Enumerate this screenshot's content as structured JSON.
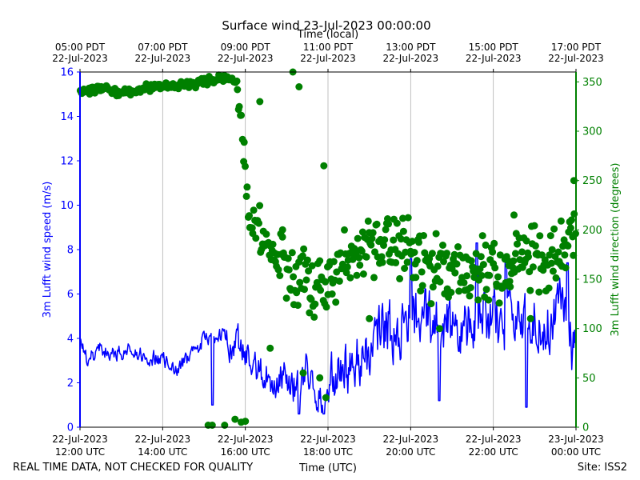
{
  "chart_data": {
    "type": "line",
    "title": "Surface wind 23-Jul-2023 00:00:00",
    "top_axis_label": "Time (local)",
    "top_ticks": [
      {
        "hour": 12,
        "line1": "05:00 PDT",
        "line2": "22-Jul-2023"
      },
      {
        "hour": 14,
        "line1": "07:00 PDT",
        "line2": "22-Jul-2023"
      },
      {
        "hour": 16,
        "line1": "09:00 PDT",
        "line2": "22-Jul-2023"
      },
      {
        "hour": 18,
        "line1": "11:00 PDT",
        "line2": "22-Jul-2023"
      },
      {
        "hour": 20,
        "line1": "13:00 PDT",
        "line2": "22-Jul-2023"
      },
      {
        "hour": 22,
        "line1": "15:00 PDT",
        "line2": "22-Jul-2023"
      },
      {
        "hour": 24,
        "line1": "17:00 PDT",
        "line2": "22-Jul-2023"
      }
    ],
    "xlabel": "Time (UTC)",
    "x_ticks": [
      {
        "hour": 12,
        "line1": "22-Jul-2023",
        "line2": "12:00 UTC"
      },
      {
        "hour": 14,
        "line1": "22-Jul-2023",
        "line2": "14:00 UTC"
      },
      {
        "hour": 16,
        "line1": "22-Jul-2023",
        "line2": "16:00 UTC"
      },
      {
        "hour": 18,
        "line1": "22-Jul-2023",
        "line2": "18:00 UTC"
      },
      {
        "hour": 20,
        "line1": "22-Jul-2023",
        "line2": "20:00 UTC"
      },
      {
        "hour": 22,
        "line1": "22-Jul-2023",
        "line2": "22:00 UTC"
      },
      {
        "hour": 24,
        "line1": "23-Jul-2023",
        "line2": "00:00 UTC"
      }
    ],
    "xlim": [
      12,
      24
    ],
    "grid": "vertical",
    "ylabel": "3m Lufft wind speed (m/s)",
    "ylim": [
      0,
      16
    ],
    "y_ticks": [
      0,
      2,
      4,
      6,
      8,
      10,
      12,
      14,
      16
    ],
    "y2label": "3m Lufft wind direction (degrees)",
    "y2lim": [
      0,
      360
    ],
    "y2_ticks": [
      0,
      50,
      100,
      150,
      200,
      250,
      300,
      350
    ],
    "colors": {
      "speed": "#0000ff",
      "direction": "#008000"
    },
    "speed_anchors": [
      [
        12.0,
        3.7
      ],
      [
        12.2,
        2.9
      ],
      [
        12.4,
        3.5
      ],
      [
        12.8,
        3.4
      ],
      [
        13.0,
        3.3
      ],
      [
        13.2,
        3.7
      ],
      [
        13.5,
        3.2
      ],
      [
        14.0,
        3.1
      ],
      [
        14.3,
        2.4
      ],
      [
        14.6,
        3.1
      ],
      [
        14.8,
        3.4
      ],
      [
        15.0,
        4.0
      ],
      [
        15.4,
        4.1
      ],
      [
        15.8,
        3.7
      ],
      [
        16.0,
        3.2
      ],
      [
        16.2,
        2.7
      ],
      [
        16.5,
        2.2
      ],
      [
        16.8,
        2.2
      ],
      [
        17.0,
        2.0
      ],
      [
        17.3,
        1.6
      ],
      [
        17.5,
        2.5
      ],
      [
        17.7,
        1.5
      ],
      [
        18.0,
        1.5
      ],
      [
        18.3,
        2.5
      ],
      [
        18.6,
        2.9
      ],
      [
        19.0,
        3.5
      ],
      [
        19.3,
        4.4
      ],
      [
        19.6,
        4.5
      ],
      [
        20.0,
        4.8
      ],
      [
        20.3,
        5.0
      ],
      [
        20.6,
        4.7
      ],
      [
        21.0,
        4.6
      ],
      [
        21.3,
        4.2
      ],
      [
        21.6,
        5.3
      ],
      [
        22.0,
        5.0
      ],
      [
        22.3,
        4.5
      ],
      [
        22.6,
        4.3
      ],
      [
        23.0,
        5.2
      ],
      [
        23.3,
        4.6
      ],
      [
        23.6,
        5.3
      ],
      [
        24.0,
        3.0
      ]
    ],
    "speed_noise": 0.9,
    "speed_drops": [
      {
        "hour": 15.2,
        "value": 1.0
      },
      {
        "hour": 17.3,
        "value": 0.6
      },
      {
        "hour": 17.9,
        "value": 0.6
      },
      {
        "hour": 20.7,
        "value": 1.2
      },
      {
        "hour": 22.8,
        "value": 0.9
      }
    ],
    "speed_peaks": [
      {
        "hour": 20.0,
        "value": 7.6
      },
      {
        "hour": 21.6,
        "value": 8.3
      },
      {
        "hour": 22.3,
        "value": 7.5
      },
      {
        "hour": 23.8,
        "value": 7.4
      }
    ],
    "direction_anchors": [
      [
        12.0,
        340
      ],
      [
        12.6,
        343
      ],
      [
        13.0,
        338
      ],
      [
        13.5,
        343
      ],
      [
        14.0,
        345
      ],
      [
        14.5,
        347
      ],
      [
        15.0,
        350
      ],
      [
        15.5,
        355
      ],
      [
        15.8,
        350
      ],
      [
        15.85,
        330
      ],
      [
        15.95,
        290
      ],
      [
        16.1,
        210
      ],
      [
        16.5,
        185
      ],
      [
        17.0,
        160
      ],
      [
        17.5,
        140
      ],
      [
        18.0,
        145
      ],
      [
        18.5,
        175
      ],
      [
        19.0,
        185
      ],
      [
        19.5,
        185
      ],
      [
        20.0,
        180
      ],
      [
        20.5,
        160
      ],
      [
        21.0,
        165
      ],
      [
        21.5,
        160
      ],
      [
        22.0,
        160
      ],
      [
        22.5,
        165
      ],
      [
        23.0,
        170
      ],
      [
        23.5,
        170
      ],
      [
        24.0,
        200
      ]
    ],
    "direction_spread": 38,
    "direction_outliers": [
      [
        15.1,
        2
      ],
      [
        15.2,
        2
      ],
      [
        15.5,
        2
      ],
      [
        15.75,
        8
      ],
      [
        15.9,
        5
      ],
      [
        16.0,
        6
      ],
      [
        16.35,
        330
      ],
      [
        16.6,
        80
      ],
      [
        16.9,
        200
      ],
      [
        17.15,
        360
      ],
      [
        17.3,
        345
      ],
      [
        17.4,
        55
      ],
      [
        17.8,
        50
      ],
      [
        17.9,
        265
      ],
      [
        17.95,
        30
      ],
      [
        19.0,
        110
      ],
      [
        20.7,
        100
      ],
      [
        22.5,
        215
      ],
      [
        22.9,
        110
      ],
      [
        23.95,
        250
      ]
    ],
    "footer_left": "REAL TIME DATA, NOT CHECKED FOR QUALITY",
    "footer_right": "Site: ISS2"
  }
}
